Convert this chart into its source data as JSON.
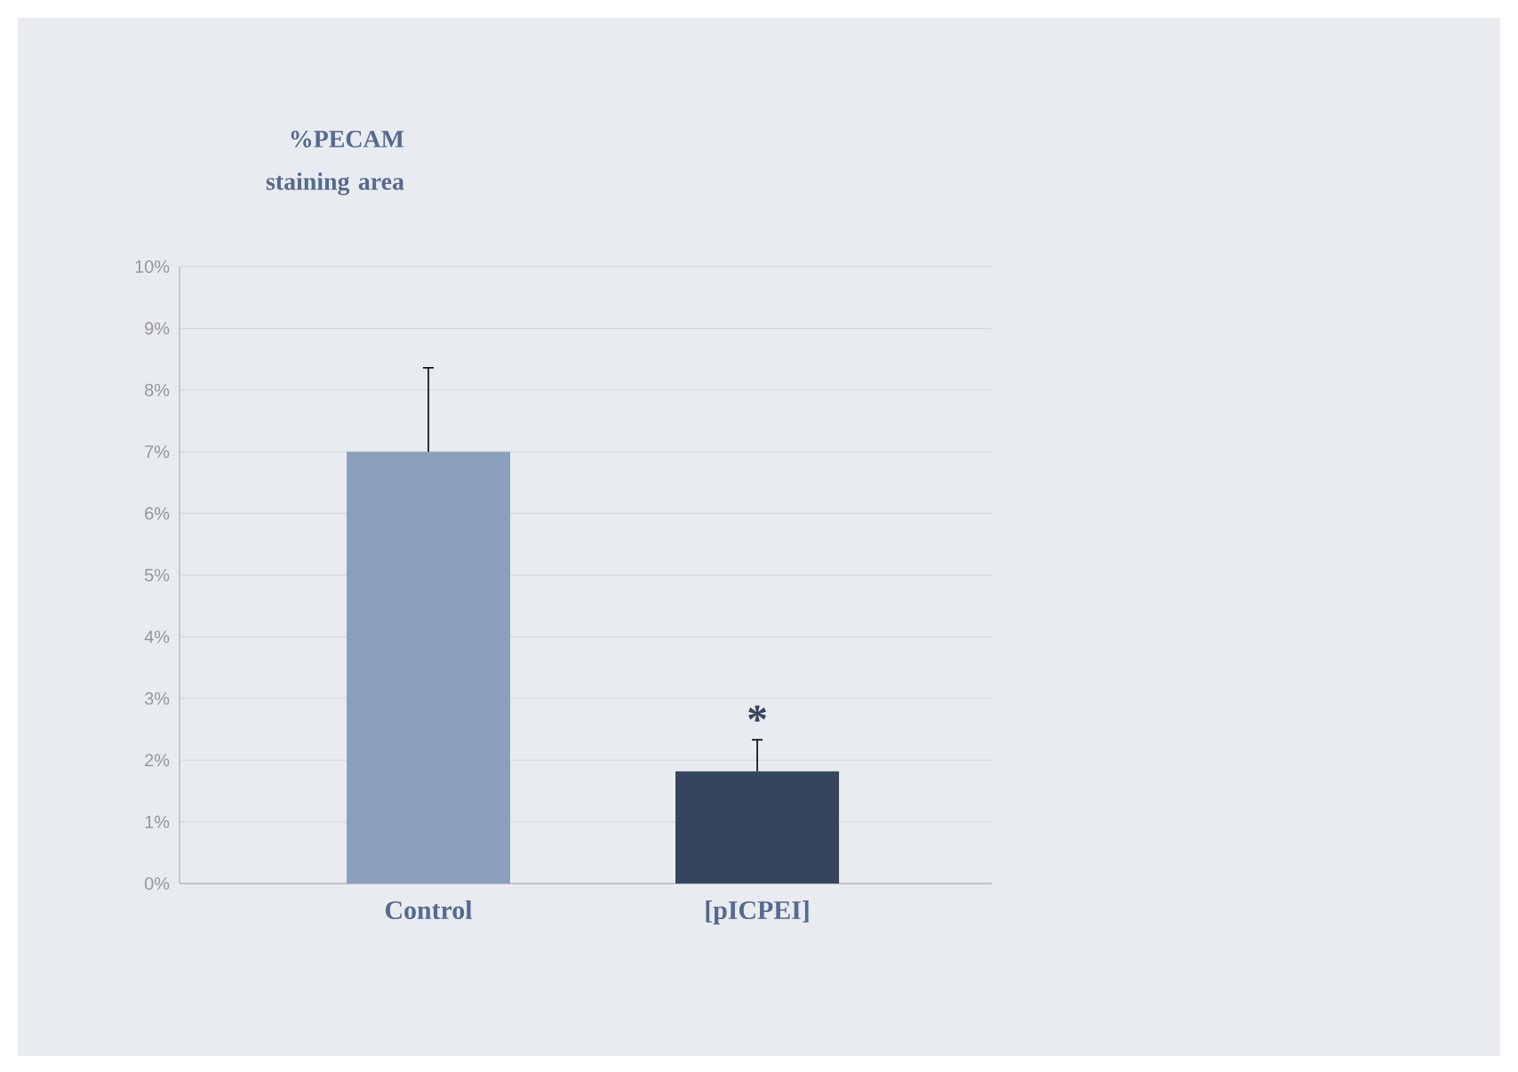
{
  "chart_data": {
    "type": "bar",
    "ylabel": "%PECAM staining area",
    "categories": [
      "Control",
      "[pICPEI]"
    ],
    "values": [
      7.0,
      1.82
    ],
    "colors": [
      "#8a9fbb",
      "#36455e"
    ],
    "errors": [
      [
        7.0,
        8.36
      ],
      [
        1.82,
        2.33
      ]
    ],
    "ylim": [
      0,
      10
    ],
    "yticks": [
      {
        "value": 0,
        "label": "0%"
      },
      {
        "value": 1,
        "label": "1%"
      },
      {
        "value": 2,
        "label": "2%"
      },
      {
        "value": 3,
        "label": "3%"
      },
      {
        "value": 4,
        "label": "4%"
      },
      {
        "value": 5,
        "label": "5%"
      },
      {
        "value": 6,
        "label": "6%"
      },
      {
        "value": 7,
        "label": "7%"
      },
      {
        "value": 8,
        "label": "8%"
      },
      {
        "value": 9,
        "label": "9%"
      },
      {
        "value": 10,
        "label": "10%"
      }
    ],
    "grid": "y",
    "annotations": [
      "*"
    ]
  }
}
